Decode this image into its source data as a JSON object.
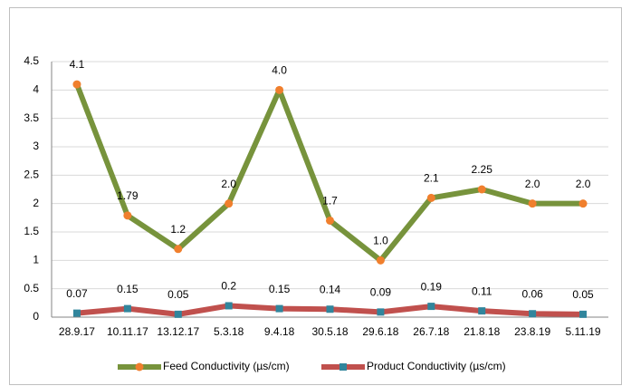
{
  "chart_data": {
    "type": "line",
    "categories": [
      "28.9.17",
      "10.11.17",
      "13.12.17",
      "5.3.18",
      "9.4.18",
      "30.5.18",
      "29.6.18",
      "26.7.18",
      "21.8.18",
      "23.8.19",
      "5.11.19"
    ],
    "series": [
      {
        "name": "Feed Conductivity (µs/cm)",
        "color": "#77933c",
        "marker_color": "#f07f2d",
        "marker": "circle",
        "values": [
          4.1,
          1.79,
          1.2,
          2,
          4,
          1.7,
          1,
          2.1,
          2.25,
          2,
          2
        ],
        "value_labels": [
          "4.1",
          "1.79",
          "1.2",
          "2.0",
          "4.0",
          "1.7",
          "1.0",
          "2.1",
          "2.25",
          "2.0",
          "2.0"
        ]
      },
      {
        "name": "Product Conductivity (µs/cm)",
        "color": "#c0504d",
        "marker_color": "#31859c",
        "marker": "square",
        "values": [
          0.07,
          0.15,
          0.05,
          0.2,
          0.15,
          0.14,
          0.09,
          0.19,
          0.11,
          0.06,
          0.05
        ],
        "value_labels": [
          "0.07",
          "0.15",
          "0.05",
          "0.2",
          "0.15",
          "0.14",
          "0.09",
          "0.19",
          "0.11",
          "0.06",
          "0.05"
        ]
      }
    ],
    "ylim": [
      0,
      4.5
    ],
    "yticks": [
      0,
      0.5,
      1,
      1.5,
      2,
      2.5,
      3,
      3.5,
      4,
      4.5
    ],
    "grid": true,
    "legend": "bottom"
  }
}
